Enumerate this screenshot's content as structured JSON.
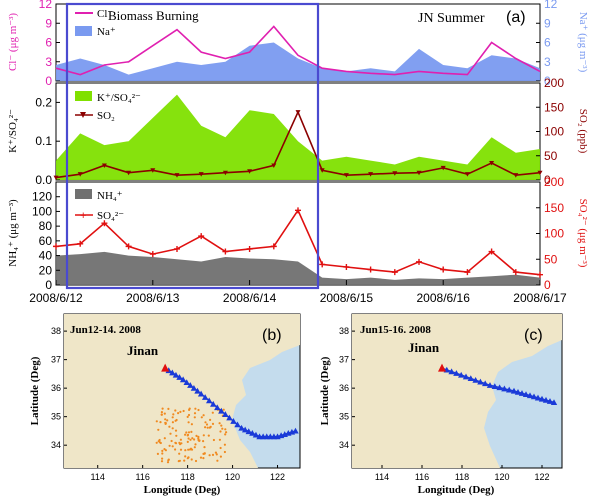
{
  "figure": {
    "panel_a_label": "(a)",
    "panel_b_label": "(b)",
    "panel_c_label": "(c)",
    "campaign_label": "JN Summer",
    "highlight_label": "Biomass Burning",
    "date_ticks": [
      "2008/6/12",
      "2008/6/13",
      "2008/6/14",
      "2008/6/15",
      "2008/6/16",
      "2008/6/17"
    ]
  },
  "colors": {
    "cl": "#e020b0",
    "na": "#7a9af0",
    "k_ratio": "#80e000",
    "so2": "#8b0000",
    "nh4": "#707070",
    "so4": "#e01010",
    "highlight_box": "#4a4ad0",
    "trajectory": "#1a3ad8",
    "fire_points": "#f08a20",
    "city_marker": "#e01010",
    "map_land": "#efe6c8",
    "map_sea": "#c4dced"
  },
  "chart_data": [
    {
      "type": "area",
      "panel": "a-top",
      "x": [
        "2008/6/12 00:00",
        "2008/6/12 06:00",
        "2008/6/12 12:00",
        "2008/6/12 18:00",
        "2008/6/13 00:00",
        "2008/6/13 06:00",
        "2008/6/13 12:00",
        "2008/6/13 18:00",
        "2008/6/14 00:00",
        "2008/6/14 06:00",
        "2008/6/14 12:00",
        "2008/6/14 18:00",
        "2008/6/15 00:00",
        "2008/6/15 06:00",
        "2008/6/15 12:00",
        "2008/6/15 18:00",
        "2008/6/16 00:00",
        "2008/6/16 06:00",
        "2008/6/16 12:00",
        "2008/6/16 18:00",
        "2008/6/17 00:00"
      ],
      "series": [
        {
          "name": "Cl⁻",
          "type": "line",
          "axis": "left",
          "values": [
            2.0,
            1.0,
            2.5,
            3.0,
            5.5,
            8.0,
            4.5,
            3.5,
            4.5,
            8.5,
            4.0,
            2.0,
            1.5,
            1.2,
            1.0,
            1.5,
            1.2,
            1.0,
            6.0,
            3.5,
            1.5
          ]
        },
        {
          "name": "Na⁺",
          "type": "area",
          "axis": "right",
          "values": [
            2.5,
            3.5,
            2.5,
            1.0,
            2.0,
            3.0,
            2.5,
            3.0,
            5.5,
            6.0,
            3.5,
            2.0,
            1.5,
            2.0,
            1.5,
            5.0,
            2.5,
            2.0,
            4.0,
            3.5,
            2.0
          ]
        }
      ],
      "ylabel_left": "Cl⁻ (μg m⁻³)",
      "ylabel_right": "Na⁺ (μg m⁻³)",
      "ylim_left": [
        0,
        12
      ],
      "ylim_right": [
        0,
        12
      ],
      "yticks_left": [
        "0",
        "3",
        "6",
        "9",
        "12"
      ],
      "yticks_right": [
        "0",
        "3",
        "6",
        "9",
        "12"
      ]
    },
    {
      "type": "area",
      "panel": "a-middle",
      "x": [
        "2008/6/12 00:00",
        "2008/6/12 06:00",
        "2008/6/12 12:00",
        "2008/6/12 18:00",
        "2008/6/13 00:00",
        "2008/6/13 06:00",
        "2008/6/13 12:00",
        "2008/6/13 18:00",
        "2008/6/14 00:00",
        "2008/6/14 06:00",
        "2008/6/14 12:00",
        "2008/6/14 18:00",
        "2008/6/15 00:00",
        "2008/6/15 06:00",
        "2008/6/15 12:00",
        "2008/6/15 18:00",
        "2008/6/16 00:00",
        "2008/6/16 06:00",
        "2008/6/16 12:00",
        "2008/6/16 18:00",
        "2008/6/17 00:00"
      ],
      "series": [
        {
          "name": "K⁺/SO₄²⁻",
          "type": "area",
          "axis": "left",
          "values": [
            0.05,
            0.12,
            0.09,
            0.1,
            0.16,
            0.22,
            0.14,
            0.11,
            0.18,
            0.17,
            0.1,
            0.05,
            0.06,
            0.05,
            0.04,
            0.06,
            0.05,
            0.04,
            0.11,
            0.07,
            0.08
          ]
        },
        {
          "name": "SO₂",
          "type": "line",
          "axis": "right",
          "values": [
            5,
            12,
            30,
            15,
            20,
            10,
            12,
            15,
            18,
            30,
            140,
            20,
            10,
            12,
            14,
            15,
            25,
            12,
            35,
            10,
            15
          ]
        }
      ],
      "ylabel_left": "K⁺/SO₄²⁻",
      "ylabel_right": "SO₂ (ppb)",
      "ylim_left": [
        0,
        0.25
      ],
      "ylim_right": [
        0,
        200
      ],
      "yticks_left": [
        "0.0",
        "0.1",
        "0.2"
      ],
      "yticks_right": [
        "0",
        "50",
        "100",
        "150",
        "200"
      ]
    },
    {
      "type": "area",
      "panel": "a-bottom",
      "x": [
        "2008/6/12 00:00",
        "2008/6/12 06:00",
        "2008/6/12 12:00",
        "2008/6/12 18:00",
        "2008/6/13 00:00",
        "2008/6/13 06:00",
        "2008/6/13 12:00",
        "2008/6/13 18:00",
        "2008/6/14 00:00",
        "2008/6/14 06:00",
        "2008/6/14 12:00",
        "2008/6/14 18:00",
        "2008/6/15 00:00",
        "2008/6/15 06:00",
        "2008/6/15 12:00",
        "2008/6/15 18:00",
        "2008/6/16 00:00",
        "2008/6/16 06:00",
        "2008/6/16 12:00",
        "2008/6/16 18:00",
        "2008/6/17 00:00"
      ],
      "series": [
        {
          "name": "NH₄⁺",
          "type": "area",
          "axis": "left",
          "values": [
            40,
            42,
            45,
            40,
            38,
            35,
            32,
            38,
            36,
            35,
            32,
            10,
            8,
            10,
            7,
            9,
            8,
            10,
            12,
            14,
            10
          ]
        },
        {
          "name": "SO₄²⁻",
          "type": "line",
          "axis": "right",
          "values": [
            75,
            80,
            120,
            75,
            60,
            70,
            95,
            65,
            70,
            75,
            145,
            40,
            35,
            30,
            25,
            45,
            30,
            25,
            65,
            25,
            20
          ]
        }
      ],
      "ylabel_left": "NH₄⁺ (μg m⁻³)",
      "ylabel_right": "SO₄²⁻ (μg m⁻³)",
      "ylim_left": [
        0,
        140
      ],
      "ylim_right": [
        0,
        200
      ],
      "yticks_left": [
        "0",
        "20",
        "40",
        "60",
        "80",
        "100",
        "120"
      ],
      "yticks_right": [
        "0",
        "50",
        "100",
        "150",
        "200"
      ]
    }
  ],
  "maps": [
    {
      "panel": "b",
      "title": "Jun12-14. 2008",
      "city": "Jinan",
      "xlabel": "Longitude (Deg)",
      "ylabel": "Latitude (Deg)",
      "xticks": [
        "114",
        "116",
        "118",
        "120",
        "122"
      ],
      "yticks": [
        "34",
        "35",
        "36",
        "37",
        "38"
      ],
      "trajectory": [
        [
          117.0,
          36.7
        ],
        [
          117.8,
          36.3
        ],
        [
          118.6,
          35.8
        ],
        [
          119.5,
          35.2
        ],
        [
          120.4,
          34.6
        ],
        [
          121.2,
          34.3
        ],
        [
          122.0,
          34.3
        ],
        [
          122.8,
          34.5
        ]
      ]
    },
    {
      "panel": "c",
      "title": "Jun15-16. 2008",
      "city": "Jinan",
      "xlabel": "Longitude (Deg)",
      "ylabel": "Latitude (Deg)",
      "xticks": [
        "114",
        "116",
        "118",
        "120",
        "122"
      ],
      "yticks": [
        "34",
        "35",
        "36",
        "37",
        "38"
      ],
      "trajectory": [
        [
          117.0,
          36.7
        ],
        [
          118.2,
          36.4
        ],
        [
          119.4,
          36.1
        ],
        [
          120.6,
          35.9
        ],
        [
          121.6,
          35.7
        ],
        [
          122.6,
          35.5
        ]
      ]
    }
  ]
}
